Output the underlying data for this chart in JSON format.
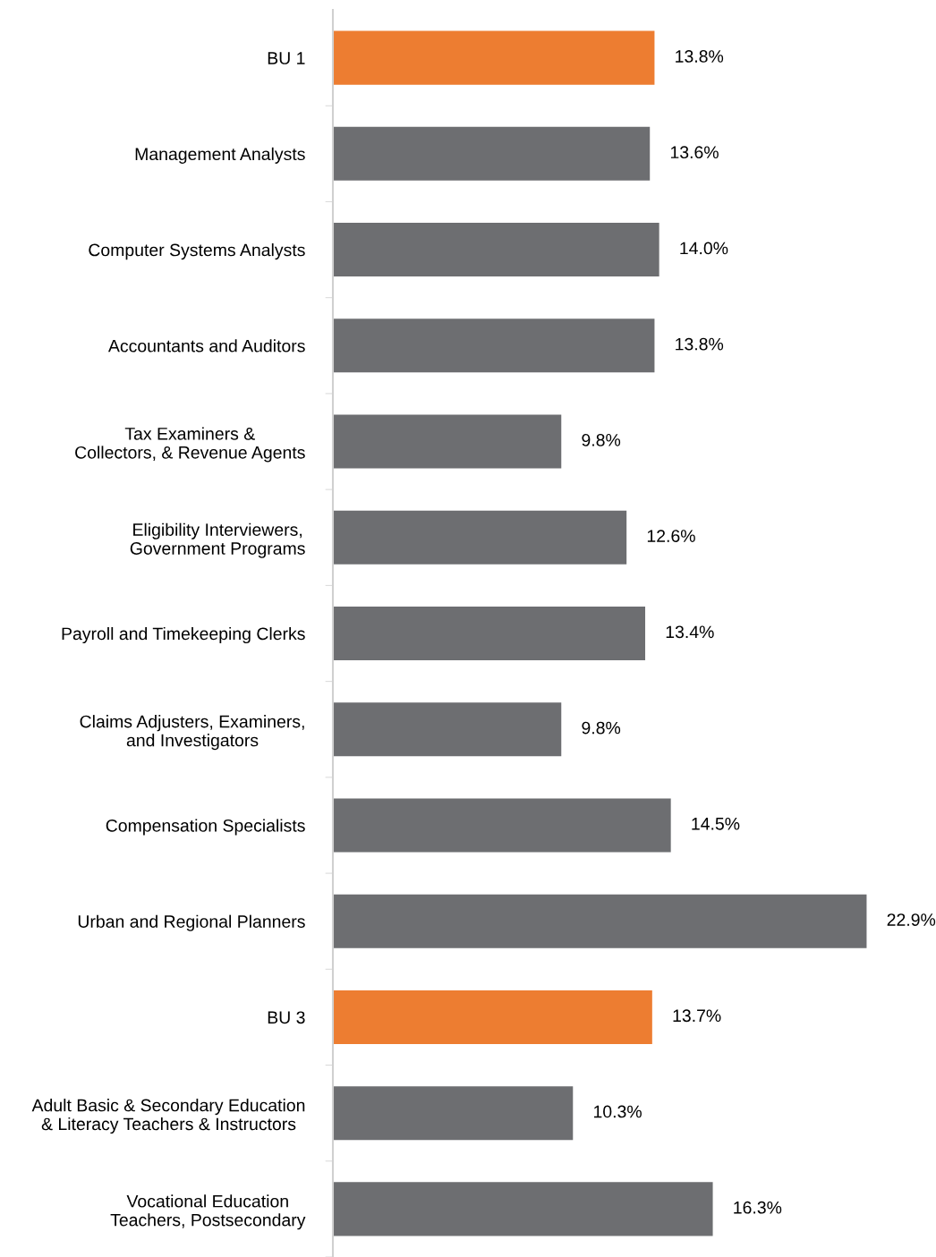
{
  "chart_data": {
    "type": "bar",
    "orientation": "horizontal",
    "categories": [
      "BU 1",
      "Management Analysts",
      "Computer Systems Analysts",
      "Accountants and Auditors",
      "Tax Examiners &\nCollectors, & Revenue Agents",
      "Eligibility Interviewers,\nGovernment Programs",
      "Payroll and Timekeeping Clerks",
      "Claims Adjusters, Examiners,\nand Investigators",
      "Compensation Specialists",
      "Urban and Regional Planners",
      "BU 3",
      "Adult Basic & Secondary Education\n& Literacy Teachers & Instructors",
      "Vocational Education\nTeachers, Postsecondary"
    ],
    "values": [
      13.8,
      13.6,
      14.0,
      13.8,
      9.8,
      12.6,
      13.4,
      9.8,
      14.5,
      22.9,
      13.7,
      10.3,
      16.3
    ],
    "colors": [
      "#ed7d31",
      "#6d6e71",
      "#6d6e71",
      "#6d6e71",
      "#6d6e71",
      "#6d6e71",
      "#6d6e71",
      "#6d6e71",
      "#6d6e71",
      "#6d6e71",
      "#ed7d31",
      "#6d6e71",
      "#6d6e71"
    ],
    "value_labels": [
      "13.8%",
      "13.6%",
      "14.0%",
      "13.8%",
      "9.8%",
      "12.6%",
      "13.4%",
      "9.8%",
      "14.5%",
      "22.9%",
      "13.7%",
      "10.3%",
      "16.3%"
    ],
    "grid": false,
    "legend": false
  }
}
